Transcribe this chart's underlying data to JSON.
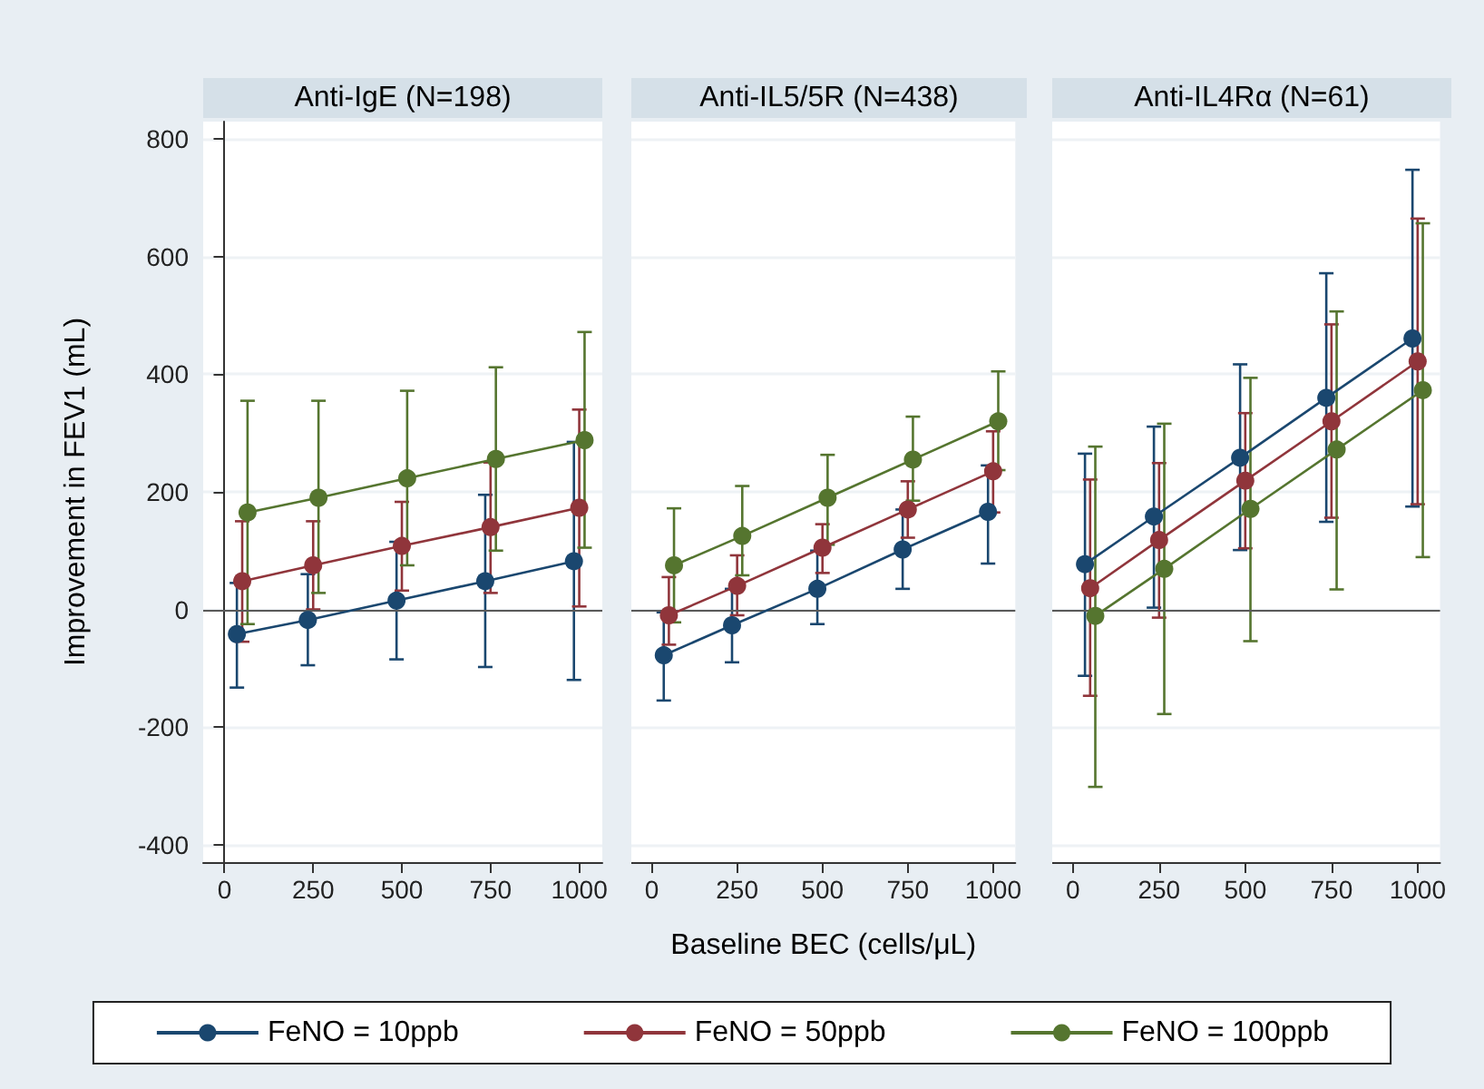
{
  "chart_data": [
    {
      "type": "line",
      "title": "Anti-IgE (N=198)",
      "ylabel": "Improvement in FEV1 (mL)",
      "xlim": [
        -60,
        1065
      ],
      "xticks": [
        0,
        250,
        500,
        750,
        1000
      ],
      "ylim": [
        -430,
        830
      ],
      "yticks": [
        -400,
        -200,
        0,
        200,
        400,
        600,
        800
      ],
      "grid": "y",
      "legend": "bottom",
      "marker": "circle",
      "ref_lines": [
        {
          "axis": "y",
          "value": 0,
          "color": "#595959"
        }
      ],
      "series": [
        {
          "name": "FeNO = 10ppb",
          "color": "#1a476f",
          "x": [
            35,
            235,
            485,
            735,
            985
          ],
          "values": [
            -42,
            -18,
            15,
            48,
            82
          ],
          "errors": [
            [
              -133,
              45
            ],
            [
              -95,
              60
            ],
            [
              -85,
              115
            ],
            [
              -98,
              195
            ],
            [
              -120,
              285
            ]
          ]
        },
        {
          "name": "FeNO = 50ppb",
          "color": "#90353b",
          "x": [
            50,
            250,
            500,
            750,
            1000
          ],
          "values": [
            48,
            75,
            108,
            140,
            173
          ],
          "errors": [
            [
              -55,
              150
            ],
            [
              0,
              150
            ],
            [
              32,
              183
            ],
            [
              28,
              250
            ],
            [
              5,
              340
            ]
          ]
        },
        {
          "name": "FeNO = 100ppb",
          "color": "#55752f",
          "x": [
            65,
            265,
            515,
            765,
            1015
          ],
          "values": [
            165,
            190,
            223,
            256,
            288
          ],
          "errors": [
            [
              -25,
              355
            ],
            [
              28,
              355
            ],
            [
              75,
              372
            ],
            [
              100,
              412
            ],
            [
              105,
              472
            ]
          ]
        }
      ]
    },
    {
      "type": "line",
      "title": "Anti-IL5/5R (N=438)",
      "xlabel": "Baseline BEC (cells/μL)",
      "xlim": [
        -60,
        1065
      ],
      "xticks": [
        0,
        250,
        500,
        750,
        1000
      ],
      "ylim": [
        -430,
        830
      ],
      "yticks": [
        -400,
        -200,
        0,
        200,
        400,
        600,
        800
      ],
      "tick_labels": "x",
      "grid": "y",
      "marker": "circle",
      "ref_lines": [
        {
          "axis": "y",
          "value": 0,
          "color": "#595959"
        }
      ],
      "series": [
        {
          "color": "#1a476f",
          "x": [
            35,
            235,
            485,
            735,
            985
          ],
          "values": [
            -78,
            -27,
            35,
            102,
            166
          ],
          "errors": [
            [
              -155,
              -5
            ],
            [
              -90,
              35
            ],
            [
              -25,
              100
            ],
            [
              35,
              170
            ],
            [
              78,
              245
            ]
          ]
        },
        {
          "color": "#90353b",
          "x": [
            50,
            250,
            500,
            750,
            1000
          ],
          "values": [
            -10,
            40,
            105,
            170,
            235
          ],
          "errors": [
            [
              -60,
              55
            ],
            [
              -10,
              92
            ],
            [
              62,
              145
            ],
            [
              122,
              218
            ],
            [
              165,
              303
            ]
          ]
        },
        {
          "color": "#55752f",
          "x": [
            65,
            265,
            515,
            765,
            1015
          ],
          "values": [
            75,
            125,
            190,
            255,
            320
          ],
          "errors": [
            [
              -22,
              172
            ],
            [
              58,
              210
            ],
            [
              110,
              263
            ],
            [
              185,
              328
            ],
            [
              237,
              405
            ]
          ]
        }
      ]
    },
    {
      "type": "line",
      "title": "Anti-IL4Rα (N=61)",
      "xlim": [
        -60,
        1065
      ],
      "xticks": [
        0,
        250,
        500,
        750,
        1000
      ],
      "ylim": [
        -430,
        830
      ],
      "yticks": [
        -400,
        -200,
        0,
        200,
        400,
        600,
        800
      ],
      "tick_labels": "x",
      "grid": "y",
      "marker": "circle",
      "ref_lines": [
        {
          "axis": "y",
          "value": 0,
          "color": "#595959"
        }
      ],
      "series": [
        {
          "color": "#1a476f",
          "x": [
            35,
            235,
            485,
            735,
            985
          ],
          "values": [
            77,
            158,
            258,
            360,
            461
          ],
          "errors": [
            [
              -113,
              265
            ],
            [
              3,
              311
            ],
            [
              101,
              417
            ],
            [
              149,
              572
            ],
            [
              175,
              748
            ]
          ]
        },
        {
          "color": "#90353b",
          "x": [
            50,
            250,
            500,
            750,
            1000
          ],
          "values": [
            36,
            118,
            219,
            320,
            422
          ],
          "errors": [
            [
              -147,
              221
            ],
            [
              -14,
              249
            ],
            [
              104,
              334
            ],
            [
              156,
              485
            ],
            [
              179,
              665
            ]
          ]
        },
        {
          "color": "#55752f",
          "x": [
            65,
            265,
            515,
            765,
            1015
          ],
          "values": [
            -11,
            69,
            171,
            272,
            373
          ],
          "errors": [
            [
              -302,
              277
            ],
            [
              -178,
              316
            ],
            [
              -54,
              394
            ],
            [
              34,
              507
            ],
            [
              89,
              657
            ]
          ]
        }
      ]
    }
  ]
}
